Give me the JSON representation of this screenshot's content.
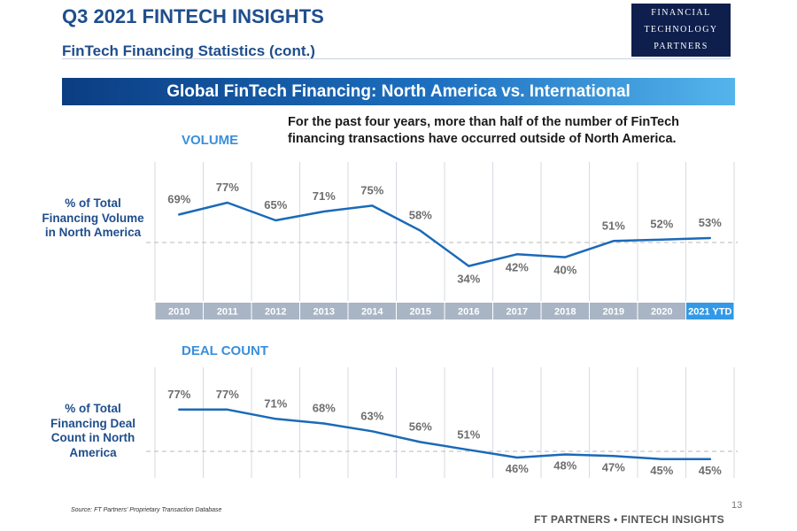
{
  "header": {
    "title": "Q3 2021 FINTECH INSIGHTS",
    "subtitle": "FinTech Financing Statistics (cont.)",
    "logo_lines": [
      "FINANCIAL",
      "TECHNOLOGY",
      "PARTNERS"
    ]
  },
  "banner": "Global FinTech Financing:  North America vs. International",
  "note": "For the past four years, more than half of the number of FinTech financing transactions have occurred outside of North America.",
  "colors": {
    "line": "#1a6ab8",
    "axis_band": "#a9b4c4",
    "highlight": "#3399e6",
    "brand": "#1f4e8c"
  },
  "chart_data": [
    {
      "type": "line",
      "section_title": "VOLUME",
      "ylabel": "% of Total Financing Volume in North America",
      "categories": [
        "2010",
        "2011",
        "2012",
        "2013",
        "2014",
        "2015",
        "2016",
        "2017",
        "2018",
        "2019",
        "2020",
        "2021 YTD"
      ],
      "values": [
        69,
        77,
        65,
        71,
        75,
        58,
        34,
        42,
        40,
        51,
        52,
        53
      ],
      "value_labels": [
        "69%",
        "77%",
        "65%",
        "71%",
        "75%",
        "58%",
        "34%",
        "42%",
        "40%",
        "51%",
        "52%",
        "53%"
      ],
      "reference_line": 50,
      "grid": true
    },
    {
      "type": "line",
      "section_title": "DEAL COUNT",
      "ylabel": "% of Total Financing Deal Count in North America",
      "categories": [
        "2010",
        "2011",
        "2012",
        "2013",
        "2014",
        "2015",
        "2016",
        "2017",
        "2018",
        "2019",
        "2020",
        "2021 YTD"
      ],
      "values": [
        77,
        77,
        71,
        68,
        63,
        56,
        51,
        46,
        48,
        47,
        45,
        45
      ],
      "value_labels": [
        "77%",
        "77%",
        "71%",
        "68%",
        "63%",
        "56%",
        "51%",
        "46%",
        "48%",
        "47%",
        "45%",
        "45%"
      ],
      "reference_line": 50,
      "grid": true
    }
  ],
  "footer": {
    "source": "Source: FT Partners' Proprietary Transaction Database",
    "brand": "FT PARTNERS • FINTECH INSIGHTS",
    "page": "13"
  }
}
